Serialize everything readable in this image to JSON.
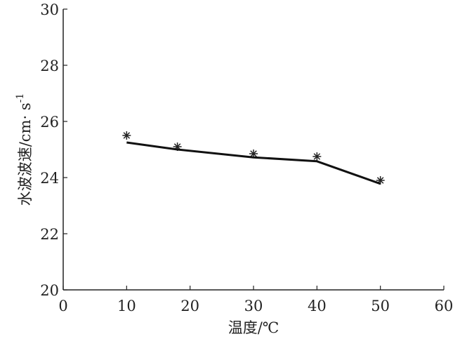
{
  "chart_data": {
    "type": "line",
    "title": "",
    "xlabel": "温度/℃",
    "ylabel": "水波波速/cm· s",
    "ylabel_superscript": "-1",
    "xlim": [
      0,
      60
    ],
    "ylim": [
      20,
      30
    ],
    "xticks": [
      "0",
      "10",
      "20",
      "30",
      "40",
      "50",
      "60"
    ],
    "yticks": [
      "20",
      "22",
      "24",
      "26",
      "28",
      "30"
    ],
    "grid": false,
    "legend": "none",
    "series": [
      {
        "type": "scatter",
        "marker": "asterisk",
        "x": [
          10,
          18,
          30,
          40,
          50
        ],
        "y": [
          25.5,
          25.1,
          24.85,
          24.75,
          23.9
        ]
      },
      {
        "type": "line",
        "x": [
          10,
          18,
          30,
          40,
          50
        ],
        "y": [
          25.25,
          25.0,
          24.72,
          24.58,
          23.78
        ]
      }
    ],
    "colors": {
      "axis": "#222222",
      "line": "#111111",
      "marker": "#222222"
    }
  }
}
